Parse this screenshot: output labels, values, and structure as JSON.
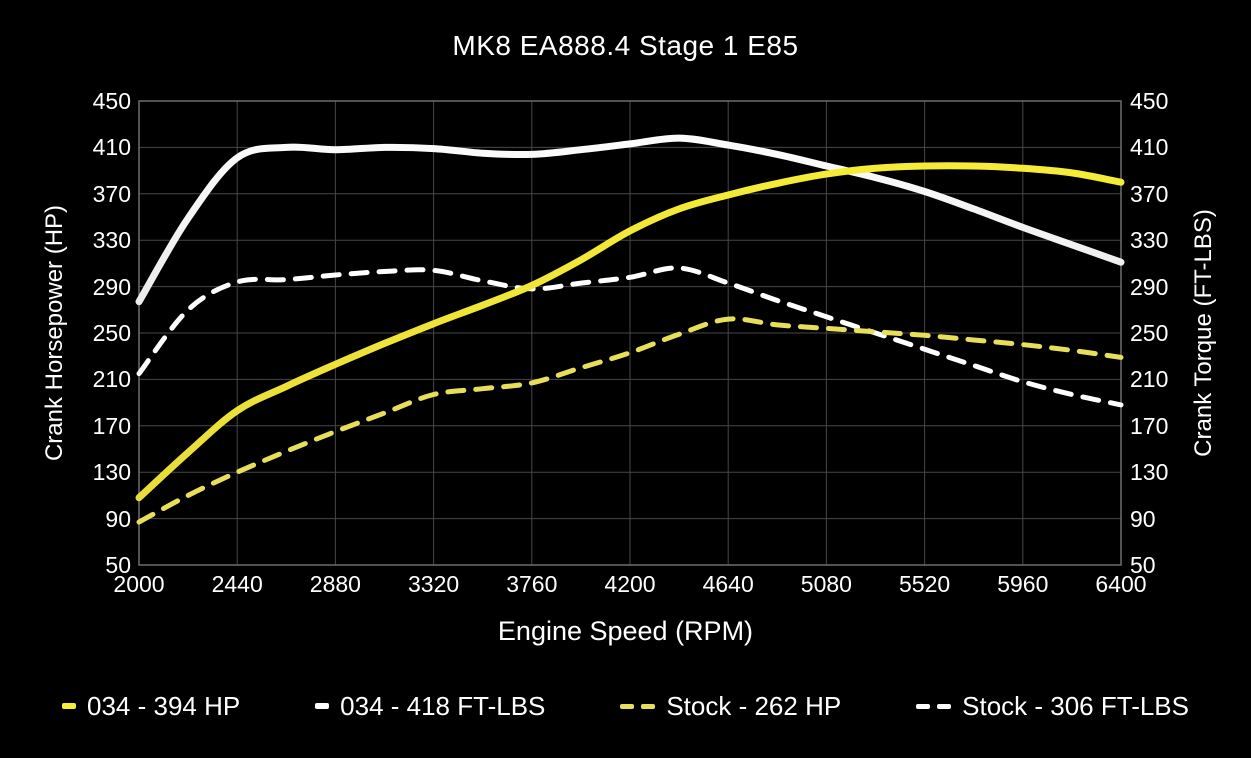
{
  "chart_data": {
    "type": "line",
    "title": "MK8 EA888.4 Stage 1 E85",
    "xlabel": "Engine Speed (RPM)",
    "ylabel_left": "Crank Horsepower (HP)",
    "ylabel_right": "Crank Torque (FT-LBS)",
    "xlim": [
      2000,
      6400
    ],
    "ylim": [
      50,
      450
    ],
    "x_ticks": [
      2000,
      2440,
      2880,
      3320,
      3760,
      4200,
      4640,
      5080,
      5520,
      5960,
      6400
    ],
    "y_ticks": [
      50,
      90,
      130,
      170,
      210,
      250,
      290,
      330,
      370,
      410,
      450
    ],
    "grid": true,
    "legend_position": "bottom",
    "x": [
      2000,
      2220,
      2440,
      2660,
      2880,
      3100,
      3320,
      3540,
      3760,
      3980,
      4200,
      4420,
      4640,
      4860,
      5080,
      5300,
      5520,
      5740,
      5960,
      6180,
      6400
    ],
    "series": [
      {
        "name": "034 - 394 HP",
        "axis": "left",
        "style": "solid",
        "color": "#f7ef35",
        "color2": "#e5d93a",
        "values": [
          108,
          147,
          183,
          204,
          223,
          241,
          258,
          274,
          291,
          313,
          338,
          357,
          369,
          379,
          387,
          392,
          394,
          394,
          392,
          388,
          380
        ]
      },
      {
        "name": "034 - 418 FT-LBS",
        "axis": "right",
        "style": "solid",
        "color": "#ffffff",
        "color2": "#d2d2d2",
        "values": [
          277,
          349,
          401,
          410,
          408,
          410,
          409,
          405,
          404,
          408,
          413,
          418,
          412,
          404,
          394,
          384,
          372,
          357,
          341,
          326,
          311
        ]
      },
      {
        "name": "Stock - 262 HP",
        "axis": "left",
        "style": "dashed",
        "color": "#e7df5a",
        "color2": "#e7df5a",
        "values": [
          87,
          110,
          130,
          148,
          165,
          181,
          197,
          202,
          207,
          220,
          233,
          249,
          262,
          257,
          254,
          251,
          248,
          244,
          240,
          235,
          229
        ]
      },
      {
        "name": "Stock - 306 FT-LBS",
        "axis": "right",
        "style": "dashed",
        "color": "#ffffff",
        "color2": "#ffffff",
        "values": [
          215,
          270,
          294,
          296,
          300,
          303,
          304,
          295,
          288,
          293,
          298,
          306,
          293,
          278,
          264,
          250,
          236,
          222,
          208,
          197,
          188
        ]
      }
    ]
  },
  "colors": {
    "background": "#000000",
    "grid": "#474747",
    "border": "#6e6e6e",
    "text": "#ffffff"
  }
}
